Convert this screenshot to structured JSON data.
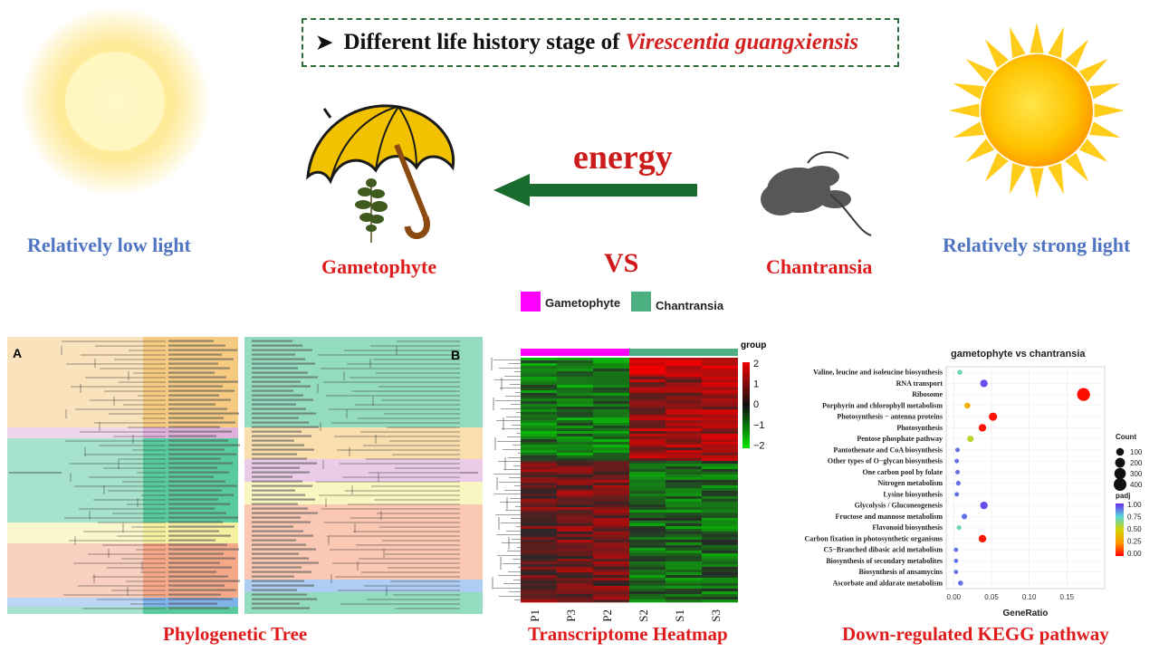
{
  "banner": {
    "prefix": "Different life history stage of",
    "species": "Virescentia guangxiensis"
  },
  "labels": {
    "low_light": "Relatively low light",
    "strong_light": "Relatively strong light",
    "gametophyte": "Gametophyte",
    "chantransia": "Chantransia",
    "vs": "VS",
    "energy": "energy"
  },
  "captions": {
    "tree": "Phylogenetic Tree",
    "heatmap": "Transcriptome  Heatmap",
    "kegg": "Down-regulated KEGG pathway"
  },
  "tree": {
    "label_a": "A",
    "label_b": "B"
  },
  "heatmap": {
    "legend": [
      {
        "name": "Gametophyte",
        "color": "#ff00ff"
      },
      {
        "name": "Chantransia",
        "color": "#4caf7f"
      }
    ],
    "group_label": "group",
    "scale_ticks": [
      "2",
      "1",
      "0",
      "−1",
      "−2"
    ],
    "columns": [
      "P1",
      "P3",
      "P2",
      "S2",
      "S1",
      "S3"
    ]
  },
  "colors": {
    "banner_border": "#2e6b3a",
    "blue_label": "#4f74c1",
    "red_label": "#e01b1b",
    "arrow": "#1a6b2e",
    "sun": "#ffd31a",
    "umbrella": "#f2c200"
  },
  "chart_data": {
    "type": "scatter",
    "title": "gametophyte vs chantransia",
    "xlabel": "GeneRatio",
    "ylabel": "",
    "xlim": [
      -0.01,
      0.2
    ],
    "xticks": [
      "0.00",
      "0.05",
      "0.10",
      "0.15"
    ],
    "categories": [
      "Valine, leucine and isoleucine biosynthesis",
      "RNA transport",
      "Ribosome",
      "Porphyrin and chlorophyll metabolism",
      "Photosynthesis − antenna proteins",
      "Photosynthesis",
      "Pentose phosphate pathway",
      "Pantothenate and CoA biosynthesis",
      "Other types of O−glycan biosynthesis",
      "One carbon pool by folate",
      "Nitrogen metabolism",
      "Lysine biosynthesis",
      "Glycolysis / Gluconeogenesis",
      "Fructose and mannose metabolism",
      "Flavonoid biosynthesis",
      "Carbon fixation in photosynthetic organisms",
      "C5−Branched dibasic acid metabolism",
      "Biosynthesis of secondary metabolites",
      "Biosynthesis of ansamycins",
      "Ascorbate and aldarate metabolism"
    ],
    "gene_ratio": [
      0.008,
      0.04,
      0.172,
      0.018,
      0.052,
      0.038,
      0.022,
      0.005,
      0.004,
      0.005,
      0.006,
      0.004,
      0.04,
      0.014,
      0.007,
      0.038,
      0.003,
      0.003,
      0.003,
      0.009
    ],
    "count": [
      20,
      90,
      420,
      40,
      120,
      90,
      50,
      12,
      10,
      12,
      14,
      10,
      90,
      30,
      16,
      90,
      8,
      8,
      8,
      20
    ],
    "padj": [
      0.7,
      0.95,
      0.02,
      0.35,
      0.03,
      0.03,
      0.55,
      0.9,
      0.9,
      0.9,
      0.9,
      0.9,
      0.95,
      0.9,
      0.7,
      0.03,
      0.9,
      0.9,
      0.9,
      0.9
    ],
    "legend_count": {
      "title": "Count",
      "values": [
        "100",
        "200",
        "300",
        "400"
      ]
    },
    "legend_padj": {
      "title": "padj",
      "values": [
        "1.00",
        "0.75",
        "0.50",
        "0.25",
        "0.00"
      ]
    }
  }
}
